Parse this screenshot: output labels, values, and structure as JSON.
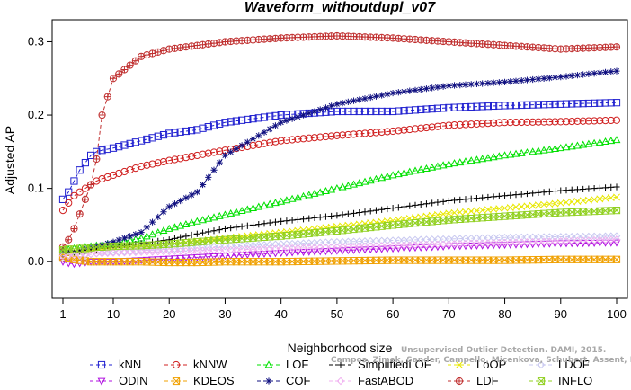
{
  "chart_data": {
    "type": "line",
    "title": "Waveform_withoutdupl_v07",
    "xlabel": "Neighborhood size",
    "ylabel": "Adjusted AP",
    "xlim": [
      1,
      100
    ],
    "ylim": [
      -0.05,
      0.33
    ],
    "x_ticks": [
      1,
      10,
      20,
      30,
      40,
      50,
      60,
      70,
      80,
      90,
      100
    ],
    "y_ticks": [
      0.0,
      0.1,
      0.2,
      0.3
    ],
    "y_tick_labels": [
      "0.0",
      "0.1",
      "0.2",
      "0.3"
    ],
    "grid": false,
    "legend_position": "bottom",
    "x": [
      1,
      2,
      3,
      4,
      5,
      6,
      7,
      8,
      10,
      15,
      20,
      25,
      30,
      40,
      50,
      60,
      70,
      80,
      90,
      100
    ],
    "series": [
      {
        "name": "kNN",
        "color": "#2020d0",
        "marker": "square",
        "dash": "4,3",
        "values": [
          0.085,
          0.095,
          0.11,
          0.125,
          0.135,
          0.145,
          0.15,
          0.152,
          0.155,
          0.165,
          0.175,
          0.18,
          0.19,
          0.2,
          0.205,
          0.205,
          0.21,
          0.213,
          0.215,
          0.217
        ]
      },
      {
        "name": "kNNW",
        "color": "#d02020",
        "marker": "circle",
        "dash": "4,3",
        "values": [
          0.07,
          0.08,
          0.09,
          0.095,
          0.1,
          0.105,
          0.11,
          0.113,
          0.118,
          0.13,
          0.138,
          0.145,
          0.152,
          0.165,
          0.172,
          0.178,
          0.186,
          0.19,
          0.191,
          0.193
        ]
      },
      {
        "name": "LOF",
        "color": "#00e000",
        "marker": "triangle",
        "dash": "4,3",
        "values": [
          0.016,
          0.017,
          0.018,
          0.019,
          0.02,
          0.021,
          0.022,
          0.023,
          0.025,
          0.032,
          0.045,
          0.055,
          0.064,
          0.082,
          0.1,
          0.118,
          0.133,
          0.145,
          0.155,
          0.166
        ]
      },
      {
        "name": "COF",
        "color": "#101080",
        "marker": "asterisk",
        "dash": "4,3",
        "values": [
          0.01,
          0.012,
          0.013,
          0.015,
          0.017,
          0.019,
          0.021,
          0.023,
          0.027,
          0.04,
          0.075,
          0.095,
          0.145,
          0.19,
          0.215,
          0.23,
          0.24,
          0.245,
          0.252,
          0.26
        ]
      },
      {
        "name": "SimplifiedLOF",
        "color": "#000000",
        "marker": "plus",
        "dash": "4,3",
        "values": [
          0.012,
          0.013,
          0.013,
          0.014,
          0.015,
          0.016,
          0.017,
          0.018,
          0.02,
          0.025,
          0.03,
          0.038,
          0.045,
          0.055,
          0.063,
          0.073,
          0.083,
          0.09,
          0.097,
          0.102
        ]
      },
      {
        "name": "LoOP",
        "color": "#e8e800",
        "marker": "x",
        "dash": "4,3",
        "values": [
          0.01,
          0.01,
          0.011,
          0.012,
          0.013,
          0.014,
          0.015,
          0.016,
          0.017,
          0.02,
          0.024,
          0.028,
          0.032,
          0.04,
          0.048,
          0.056,
          0.066,
          0.073,
          0.08,
          0.088
        ]
      },
      {
        "name": "LDOF",
        "color": "#c8c8f0",
        "marker": "diamond",
        "dash": "4,3",
        "values": [
          0.005,
          0.006,
          0.007,
          0.008,
          0.009,
          0.01,
          0.011,
          0.012,
          0.013,
          0.015,
          0.017,
          0.019,
          0.021,
          0.024,
          0.027,
          0.029,
          0.031,
          0.033,
          0.034,
          0.035
        ]
      },
      {
        "name": "ODIN",
        "color": "#b010e0",
        "marker": "triangle-down",
        "dash": "4,3",
        "values": [
          0.0,
          -0.002,
          -0.003,
          -0.002,
          -0.001,
          0.0,
          0.0,
          0.0,
          0.0,
          0.002,
          0.004,
          0.006,
          0.008,
          0.012,
          0.015,
          0.018,
          0.021,
          0.023,
          0.025,
          0.026
        ]
      },
      {
        "name": "KDEOS",
        "color": "#f0a000",
        "marker": "square-x",
        "dash": "4,3",
        "values": [
          0.005,
          0.004,
          0.003,
          0.002,
          0.001,
          0.0,
          0.0,
          0.0,
          0.0,
          0.0,
          -0.001,
          -0.001,
          0.0,
          0.0,
          0.001,
          0.002,
          0.002,
          0.002,
          0.003,
          0.003
        ]
      },
      {
        "name": "FastABOD",
        "color": "#f0b0f0",
        "marker": "diamond",
        "dash": "4,3",
        "values": [
          0.008,
          0.008,
          0.009,
          0.009,
          0.01,
          0.01,
          0.011,
          0.011,
          0.012,
          0.013,
          0.014,
          0.015,
          0.016,
          0.018,
          0.02,
          0.022,
          0.024,
          0.026,
          0.028,
          0.03
        ]
      },
      {
        "name": "LDF",
        "color": "#c03030",
        "marker": "circle-plus",
        "dash": "4,3",
        "values": [
          0.02,
          0.03,
          0.045,
          0.065,
          0.085,
          0.105,
          0.14,
          0.2,
          0.25,
          0.28,
          0.29,
          0.295,
          0.3,
          0.305,
          0.308,
          0.305,
          0.3,
          0.295,
          0.29,
          0.293
        ]
      },
      {
        "name": "INFLO",
        "color": "#90d020",
        "marker": "square-x",
        "dash": "4,3",
        "values": [
          0.016,
          0.017,
          0.017,
          0.018,
          0.018,
          0.019,
          0.02,
          0.02,
          0.021,
          0.022,
          0.024,
          0.027,
          0.03,
          0.035,
          0.042,
          0.05,
          0.057,
          0.062,
          0.067,
          0.07
        ]
      }
    ],
    "legend_rows": [
      [
        "kNN",
        "kNNW",
        "LOF",
        "SimplifiedLOF",
        "LoOP",
        "LDOF"
      ],
      [
        "ODIN",
        "KDEOS",
        "COF",
        "FastABOD",
        "LDF",
        "INFLO"
      ]
    ]
  },
  "watermark": {
    "line1": "Unsupervised Outlier Detection. DAMI, 2015.",
    "line2": "Campos, Zimek, Sander, Campello, Micenkova, Schubert, Assent, Houle"
  }
}
